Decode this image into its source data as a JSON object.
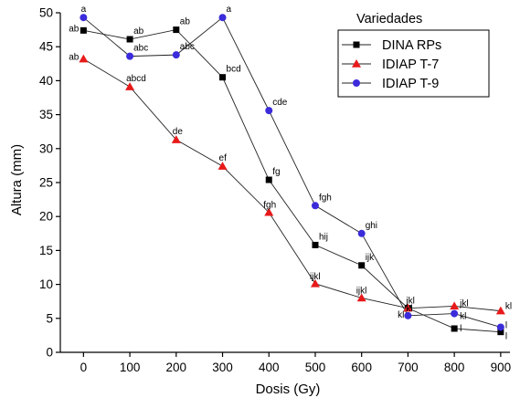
{
  "chart_data": {
    "type": "line",
    "xlabel": "Dosis (Gy)",
    "ylabel": "Altura (mm)",
    "xlim": [
      -50,
      920
    ],
    "ylim": [
      0,
      50
    ],
    "x": [
      0,
      100,
      200,
      300,
      400,
      500,
      600,
      700,
      800,
      900
    ],
    "x_ticks": [
      "0",
      "100",
      "200",
      "300",
      "400",
      "500",
      "600",
      "700",
      "800",
      "900"
    ],
    "y_ticks": [
      0,
      5,
      10,
      15,
      20,
      25,
      30,
      35,
      40,
      45,
      50
    ],
    "legend_title": "Variedades",
    "legend_position": "top-right",
    "grid": false,
    "series": [
      {
        "name": "DINA RPs",
        "color": "#000000",
        "marker": "square",
        "values": [
          47.4,
          46.1,
          47.5,
          40.5,
          25.4,
          15.8,
          12.8,
          6.5,
          3.5,
          3.0
        ],
        "labels": [
          "ab",
          "ab",
          "ab",
          "bcd",
          "fg",
          "hij",
          "ijk",
          "",
          "l",
          "l"
        ]
      },
      {
        "name": "IDIAP T-7",
        "color": "#e8191a",
        "marker": "triangle",
        "values": [
          43.2,
          39.1,
          31.3,
          27.4,
          20.6,
          10.1,
          8.0,
          6.5,
          6.8,
          6.1
        ],
        "labels": [
          "ab",
          "abcd",
          "de",
          "ef",
          "fgh",
          "ijkl",
          "ijkl",
          "jkl",
          "jkl",
          "kl"
        ]
      },
      {
        "name": "IDIAP T-9",
        "color": "#3b2bdb",
        "marker": "circle",
        "values": [
          49.3,
          43.6,
          43.8,
          49.3,
          35.6,
          21.6,
          17.5,
          5.4,
          5.7,
          3.7
        ],
        "labels": [
          "a",
          "abc",
          "abc",
          "a",
          "cde",
          "fgh",
          "ghi",
          "kl",
          "kl",
          "l"
        ]
      }
    ],
    "extra_labels": [
      {
        "text": "kl",
        "x": 700,
        "y": 5.4
      }
    ]
  }
}
